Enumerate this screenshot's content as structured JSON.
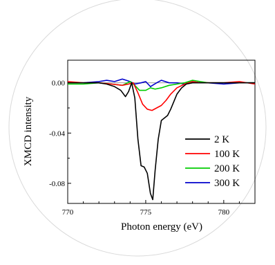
{
  "chart_data": {
    "type": "line",
    "xlabel": "Photon energy (eV)",
    "ylabel": "XMCD intensity",
    "xlim": [
      770,
      782
    ],
    "ylim": [
      -0.096,
      0.018
    ],
    "xticks": [
      770,
      775,
      780
    ],
    "xtick_labels": [
      "770",
      "775",
      "780"
    ],
    "yticks": [
      0.0,
      -0.04,
      -0.08
    ],
    "ytick_labels": [
      "0.00",
      "-0.04",
      "-0.08"
    ],
    "zero_line": true,
    "grid": false,
    "legend_position": "lower-right",
    "series": [
      {
        "name": "2 K",
        "color": "#000000",
        "x": [
          770.0,
          771.0,
          772.0,
          772.5,
          773.0,
          773.4,
          773.7,
          773.9,
          774.1,
          774.3,
          774.5,
          774.7,
          774.9,
          775.1,
          775.3,
          775.45,
          775.6,
          775.8,
          776.0,
          776.2,
          776.4,
          776.6,
          776.8,
          777.0,
          777.3,
          777.6,
          778.0,
          778.5,
          779.0,
          780.0,
          781.0,
          782.0
        ],
        "values": [
          0.0,
          0.0,
          0.0,
          -0.001,
          -0.003,
          -0.006,
          -0.011,
          -0.007,
          0.0,
          -0.012,
          -0.045,
          -0.066,
          -0.067,
          -0.072,
          -0.088,
          -0.093,
          -0.07,
          -0.045,
          -0.03,
          -0.028,
          -0.026,
          -0.021,
          -0.015,
          -0.009,
          -0.004,
          -0.001,
          0.0,
          0.0,
          0.0,
          0.0,
          0.0,
          0.0
        ]
      },
      {
        "name": "100 K",
        "color": "#ff0000",
        "x": [
          770.0,
          771.0,
          772.0,
          772.8,
          773.5,
          773.9,
          774.2,
          774.5,
          774.8,
          775.1,
          775.4,
          775.7,
          776.0,
          776.3,
          776.6,
          777.0,
          777.5,
          778.0,
          778.5,
          779.0,
          780.0,
          781.0,
          782.0
        ],
        "values": [
          0.001,
          0.0,
          0.0,
          -0.001,
          -0.002,
          -0.001,
          0.0,
          -0.008,
          -0.017,
          -0.021,
          -0.022,
          -0.02,
          -0.018,
          -0.014,
          -0.009,
          -0.004,
          -0.001,
          0.001,
          0.0,
          0.0,
          0.0,
          0.001,
          -0.001
        ]
      },
      {
        "name": "200 K",
        "color": "#00cc00",
        "x": [
          770.0,
          771.0,
          772.0,
          772.8,
          773.5,
          774.0,
          774.3,
          774.6,
          775.0,
          775.3,
          775.6,
          776.0,
          776.5,
          777.0,
          777.5,
          778.0,
          778.5,
          779.0,
          780.0,
          781.0,
          782.0
        ],
        "values": [
          -0.001,
          -0.001,
          0.0,
          -0.001,
          -0.002,
          0.001,
          -0.002,
          -0.006,
          -0.006,
          -0.004,
          -0.005,
          -0.004,
          -0.002,
          -0.001,
          0.0,
          0.002,
          0.001,
          0.0,
          0.0,
          0.0,
          0.0
        ]
      },
      {
        "name": "300 K",
        "color": "#0000cc",
        "x": [
          770.0,
          771.0,
          772.0,
          772.5,
          773.0,
          773.5,
          774.0,
          774.3,
          774.7,
          775.0,
          775.3,
          775.7,
          776.0,
          776.5,
          777.0,
          777.5,
          778.0,
          778.5,
          779.0,
          780.0,
          781.0,
          782.0
        ],
        "values": [
          0.0,
          0.0,
          0.001,
          0.002,
          0.001,
          0.003,
          0.001,
          -0.001,
          0.0,
          0.001,
          -0.003,
          0.0,
          0.002,
          0.0,
          0.0,
          -0.001,
          0.001,
          0.0,
          0.0,
          -0.001,
          0.0,
          0.0
        ]
      }
    ]
  }
}
